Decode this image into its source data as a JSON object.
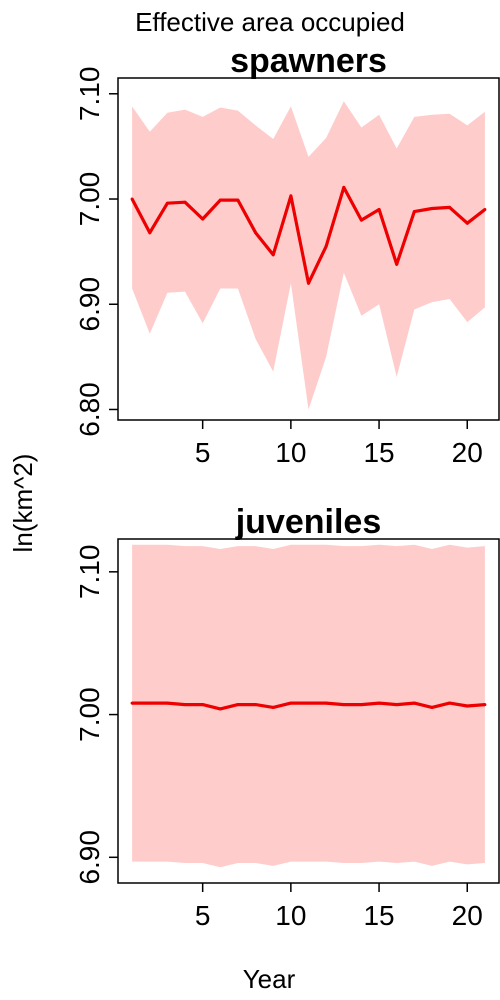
{
  "page": {
    "title": "Effective area occupied",
    "ylabel": "ln(km^2)",
    "xlabel": "Year"
  },
  "colors": {
    "line": "#ee0000",
    "band": "#ffcccc",
    "axis": "#000000"
  },
  "chart_data": [
    {
      "type": "line",
      "title": "spawners",
      "x": [
        1,
        2,
        3,
        4,
        5,
        6,
        7,
        8,
        9,
        10,
        11,
        12,
        13,
        14,
        15,
        16,
        17,
        18,
        19,
        20,
        21
      ],
      "xticks": [
        5,
        10,
        15,
        20
      ],
      "xticklabels": [
        "5",
        "10",
        "15",
        "20"
      ],
      "ylim": [
        6.79,
        7.115
      ],
      "yticks": [
        6.8,
        6.9,
        7.0,
        7.1
      ],
      "yticklabels": [
        "6.80",
        "6.90",
        "7.00",
        "7.10"
      ],
      "series": [
        {
          "values": [
            7.0,
            6.968,
            6.996,
            6.997,
            6.981,
            6.999,
            6.999,
            6.968,
            6.947,
            7.003,
            6.92,
            6.955,
            7.011,
            6.98,
            6.99,
            6.938,
            6.988,
            6.991,
            6.992,
            6.977,
            6.99
          ],
          "upper": [
            7.088,
            7.064,
            7.082,
            7.085,
            7.078,
            7.087,
            7.084,
            7.07,
            7.057,
            7.088,
            7.04,
            7.058,
            7.093,
            7.068,
            7.08,
            7.048,
            7.078,
            7.08,
            7.081,
            7.07,
            7.083
          ],
          "lower": [
            6.915,
            6.872,
            6.911,
            6.912,
            6.882,
            6.915,
            6.915,
            6.867,
            6.836,
            6.92,
            6.8,
            6.85,
            6.93,
            6.889,
            6.9,
            6.831,
            6.895,
            6.902,
            6.905,
            6.883,
            6.897
          ]
        }
      ]
    },
    {
      "type": "line",
      "title": "juveniles",
      "x": [
        1,
        2,
        3,
        4,
        5,
        6,
        7,
        8,
        9,
        10,
        11,
        12,
        13,
        14,
        15,
        16,
        17,
        18,
        19,
        20,
        21
      ],
      "xticks": [
        5,
        10,
        15,
        20
      ],
      "xticklabels": [
        "5",
        "10",
        "15",
        "20"
      ],
      "ylim": [
        6.882,
        7.123
      ],
      "yticks": [
        6.9,
        7.0,
        7.1
      ],
      "yticklabels": [
        "6.90",
        "7.00",
        "7.10"
      ],
      "series": [
        {
          "values": [
            7.008,
            7.008,
            7.008,
            7.007,
            7.007,
            7.004,
            7.007,
            7.007,
            7.005,
            7.008,
            7.008,
            7.008,
            7.007,
            7.007,
            7.008,
            7.007,
            7.008,
            7.005,
            7.008,
            7.006,
            7.007
          ],
          "upper": [
            7.119,
            7.119,
            7.119,
            7.118,
            7.118,
            7.116,
            7.118,
            7.118,
            7.116,
            7.119,
            7.119,
            7.119,
            7.118,
            7.118,
            7.119,
            7.118,
            7.119,
            7.116,
            7.119,
            7.117,
            7.118
          ],
          "lower": [
            6.897,
            6.897,
            6.897,
            6.896,
            6.896,
            6.893,
            6.896,
            6.896,
            6.894,
            6.897,
            6.897,
            6.897,
            6.896,
            6.896,
            6.897,
            6.896,
            6.897,
            6.894,
            6.897,
            6.895,
            6.896
          ]
        }
      ]
    }
  ]
}
